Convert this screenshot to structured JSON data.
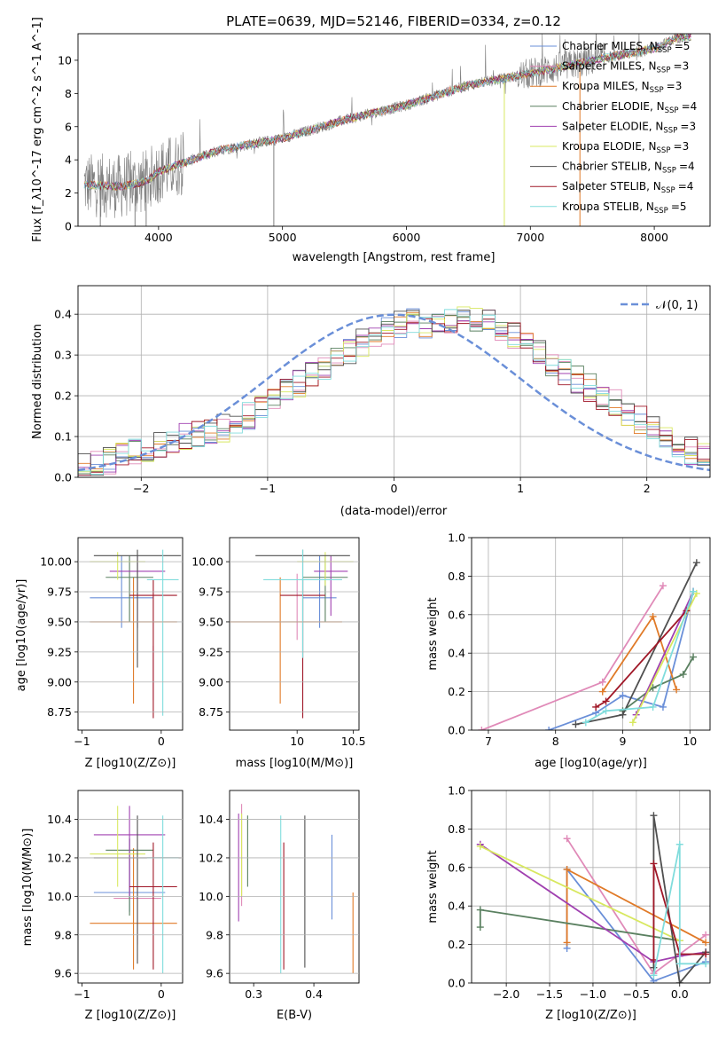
{
  "figure": {
    "title": "PLATE=0639, MJD=52146, FIBERID=0334, z=0.12"
  },
  "model_names": [
    "Chabrier MILES",
    "Salpeter MILES",
    "Kroupa MILES",
    "Chabrier ELODIE",
    "Salpeter ELODIE",
    "Kroupa ELODIE",
    "Chabrier STELIB",
    "Salpeter STELIB",
    "Kroupa STELIB"
  ],
  "model_colors": [
    "#6a8fd8",
    "#e08ab8",
    "#e07a28",
    "#5a8060",
    "#a040b0",
    "#d8e860",
    "#505050",
    "#a01828",
    "#80dcdc"
  ],
  "chart_data": [
    {
      "type": "line",
      "xlabel": "wavelength [Angstrom, rest frame]",
      "ylabel": "Flux [f_λ10^-17 erg cm^-2 s^-1 A^-1]",
      "xlim": [
        3350,
        8450
      ],
      "ylim": [
        0,
        11.6
      ],
      "xticks": [
        4000,
        5000,
        6000,
        7000,
        8000
      ],
      "yticks": [
        0,
        2,
        4,
        6,
        8,
        10
      ],
      "legend_placement": "top-right",
      "data_color": "#808080",
      "continuum_points": [
        [
          3400,
          2.5
        ],
        [
          3700,
          2.4
        ],
        [
          3900,
          2.7
        ],
        [
          4000,
          3.3
        ],
        [
          4500,
          4.6
        ],
        [
          5000,
          5.3
        ],
        [
          5500,
          6.4
        ],
        [
          6000,
          7.3
        ],
        [
          6500,
          8.5
        ],
        [
          7000,
          9.2
        ],
        [
          7500,
          10.0
        ],
        [
          8000,
          10.7
        ],
        [
          8200,
          11.4
        ]
      ],
      "series": [
        {
          "name": "Chabrier MILES",
          "n_ssp": "5"
        },
        {
          "name": "Salpeter MILES",
          "n_ssp": "3"
        },
        {
          "name": "Kroupa MILES",
          "n_ssp": "3"
        },
        {
          "name": "Chabrier ELODIE",
          "n_ssp": "4"
        },
        {
          "name": "Salpeter ELODIE",
          "n_ssp": "3"
        },
        {
          "name": "Kroupa ELODIE",
          "n_ssp": "3"
        },
        {
          "name": "Chabrier STELIB",
          "n_ssp": "4"
        },
        {
          "name": "Salpeter STELIB",
          "n_ssp": "4"
        },
        {
          "name": "Kroupa STELIB",
          "n_ssp": "5"
        }
      ]
    },
    {
      "type": "area",
      "xlabel": "(data-model)/error",
      "ylabel": "Normed distribution",
      "xlim": [
        -2.5,
        2.5
      ],
      "ylim": [
        0,
        0.47
      ],
      "xticks": [
        -2,
        -1,
        0,
        1,
        2
      ],
      "yticks": [
        0.0,
        0.1,
        0.2,
        0.3,
        0.4
      ],
      "grid": true,
      "legend_placement": "top-right",
      "reference_curve": {
        "name": "N(0,1)",
        "color": "#6a8fd8",
        "dash": true
      },
      "bin_width": 0.1,
      "bin_start": -2.5,
      "base_values": [
        0.025,
        0.03,
        0.04,
        0.05,
        0.06,
        0.07,
        0.08,
        0.095,
        0.1,
        0.105,
        0.11,
        0.12,
        0.13,
        0.15,
        0.17,
        0.19,
        0.21,
        0.23,
        0.25,
        0.27,
        0.29,
        0.31,
        0.33,
        0.35,
        0.36,
        0.375,
        0.38,
        0.37,
        0.375,
        0.38,
        0.39,
        0.39,
        0.385,
        0.37,
        0.35,
        0.33,
        0.31,
        0.28,
        0.26,
        0.24,
        0.22,
        0.2,
        0.18,
        0.16,
        0.14,
        0.125,
        0.1,
        0.08,
        0.065,
        0.05
      ]
    },
    {
      "type": "scatter",
      "xlabel": "Z [log10(Z/Z⊙)]",
      "ylabel": "age [log10(age/yr)]",
      "xlim": [
        -1.05,
        0.27
      ],
      "ylim": [
        8.6,
        10.2
      ],
      "xticks": [
        -1,
        0
      ],
      "yticks": [
        8.75,
        9.0,
        9.25,
        9.5,
        9.75,
        10.0
      ],
      "points": [
        {
          "x": -0.5,
          "y": 9.7,
          "xerr": 0.4,
          "y1": 9.45,
          "y2": 10.05
        },
        {
          "x": -0.1,
          "y": 9.0,
          "xerr": 0.0,
          "y1": 8.85,
          "y2": 9.3
        },
        {
          "x": -0.35,
          "y": 9.5,
          "xerr": 0.55,
          "y1": 8.82,
          "y2": 9.87
        },
        {
          "x": -0.4,
          "y": 9.87,
          "xerr": 0.3,
          "y1": 9.5,
          "y2": 10.05
        },
        {
          "x": -0.3,
          "y": 9.92,
          "xerr": 0.35,
          "y1": 9.45,
          "y2": 10.05
        },
        {
          "x": -0.55,
          "y": 10.0,
          "xerr": 0.35,
          "y1": 9.85,
          "y2": 10.08
        },
        {
          "x": -0.3,
          "y": 10.05,
          "xerr": 0.55,
          "y1": 9.12,
          "y2": 10.1
        },
        {
          "x": -0.1,
          "y": 9.72,
          "xerr": 0.3,
          "y1": 8.7,
          "y2": 9.85
        },
        {
          "x": 0.02,
          "y": 9.85,
          "xerr": 0.2,
          "y1": 8.72,
          "y2": 10.1
        }
      ]
    },
    {
      "type": "scatter",
      "xlabel": "mass [log10(M/M⊙)]",
      "ylabel": "",
      "xlim": [
        9.4,
        10.55
      ],
      "ylim": [
        8.6,
        10.2
      ],
      "xticks": [
        10.0,
        10.5
      ],
      "yticks": [
        8.75,
        9.0,
        9.25,
        9.5,
        9.75,
        10.0
      ],
      "points": [
        {
          "x": 10.2,
          "y": 9.7,
          "xerr": 0.15,
          "y1": 9.45,
          "y2": 10.05
        },
        {
          "x": 10.0,
          "y": 9.5,
          "xerr": 0.0,
          "y1": 9.35,
          "y2": 9.9
        },
        {
          "x": 9.85,
          "y": 9.5,
          "xerr": 0.55,
          "y1": 8.82,
          "y2": 9.87
        },
        {
          "x": 10.25,
          "y": 9.87,
          "xerr": 0.2,
          "y1": 9.5,
          "y2": 10.05
        },
        {
          "x": 10.3,
          "y": 9.92,
          "xerr": 0.15,
          "y1": 9.55,
          "y2": 10.05
        },
        {
          "x": 10.25,
          "y": 10.0,
          "xerr": 0.25,
          "y1": 9.8,
          "y2": 10.08
        },
        {
          "x": 10.05,
          "y": 10.05,
          "xerr": 0.42,
          "y1": 9.2,
          "y2": 10.1
        },
        {
          "x": 10.05,
          "y": 9.72,
          "xerr": 0.2,
          "y1": 8.7,
          "y2": 9.85
        },
        {
          "x": 10.05,
          "y": 9.85,
          "xerr": 0.35,
          "y1": 9.2,
          "y2": 10.1
        }
      ]
    },
    {
      "type": "line",
      "xlabel": "age [log10(age/yr)]",
      "ylabel": "mass weight",
      "xlim": [
        6.75,
        10.3
      ],
      "ylim": [
        0,
        1.0
      ],
      "xticks": [
        7,
        8,
        9,
        10
      ],
      "yticks": [
        0.0,
        0.2,
        0.4,
        0.6,
        0.8,
        1.0
      ],
      "grid": true,
      "series": [
        {
          "name": "Chabrier MILES",
          "x": [
            7.9,
            8.6,
            9.0,
            9.6,
            10.05
          ],
          "y": [
            0.0,
            0.09,
            0.18,
            0.12,
            0.72
          ]
        },
        {
          "name": "Salpeter MILES",
          "x": [
            6.9,
            8.7,
            9.6
          ],
          "y": [
            0.0,
            0.25,
            0.75
          ]
        },
        {
          "name": "Kroupa MILES",
          "x": [
            8.7,
            9.45,
            9.8
          ],
          "y": [
            0.2,
            0.59,
            0.21
          ]
        },
        {
          "name": "Chabrier ELODIE",
          "x": [
            9.0,
            9.45,
            9.9,
            10.05
          ],
          "y": [
            0.1,
            0.22,
            0.29,
            0.38
          ]
        },
        {
          "name": "Salpeter ELODIE",
          "x": [
            9.2,
            10.05
          ],
          "y": [
            0.08,
            0.72
          ]
        },
        {
          "name": "Kroupa ELODIE",
          "x": [
            9.15,
            10.1
          ],
          "y": [
            0.04,
            0.71
          ]
        },
        {
          "name": "Chabrier STELIB",
          "x": [
            8.3,
            9.0,
            10.1
          ],
          "y": [
            0.03,
            0.08,
            0.87
          ]
        },
        {
          "name": "Salpeter STELIB",
          "x": [
            8.6,
            8.75,
            9.95
          ],
          "y": [
            0.12,
            0.15,
            0.62
          ]
        },
        {
          "name": "Kroupa STELIB",
          "x": [
            8.45,
            8.75,
            9.45,
            10.05
          ],
          "y": [
            0.04,
            0.1,
            0.12,
            0.72
          ]
        }
      ]
    },
    {
      "type": "scatter",
      "xlabel": "Z [log10(Z/Z⊙)]",
      "ylabel": "mass [log10(M/M⊙)]",
      "xlim": [
        -1.05,
        0.27
      ],
      "ylim": [
        9.55,
        10.55
      ],
      "xticks": [
        -1,
        0
      ],
      "yticks": [
        9.6,
        9.8,
        10.0,
        10.2,
        10.4
      ],
      "points": [
        {
          "x": -0.4,
          "y": 10.02,
          "xerr": 0.45,
          "y1": 9.92,
          "y2": 10.3
        },
        {
          "x": -0.3,
          "y": 9.99,
          "xerr": 0.3,
          "y1": 9.75,
          "y2": 10.05
        },
        {
          "x": -0.35,
          "y": 9.86,
          "xerr": 0.55,
          "y1": 9.62,
          "y2": 10.25
        },
        {
          "x": -0.4,
          "y": 10.24,
          "xerr": 0.3,
          "y1": 9.9,
          "y2": 10.3
        },
        {
          "x": -0.4,
          "y": 10.32,
          "xerr": 0.45,
          "y1": 10.0,
          "y2": 10.47
        },
        {
          "x": -0.55,
          "y": 10.22,
          "xerr": 0.35,
          "y1": 10.05,
          "y2": 10.47
        },
        {
          "x": -0.3,
          "y": 10.2,
          "xerr": 0.55,
          "y1": 9.65,
          "y2": 10.42
        },
        {
          "x": -0.1,
          "y": 10.05,
          "xerr": 0.3,
          "y1": 9.62,
          "y2": 10.28
        },
        {
          "x": 0.02,
          "y": 10.2,
          "xerr": 0.2,
          "y1": 9.6,
          "y2": 10.42
        }
      ]
    },
    {
      "type": "scatter",
      "xlabel": "E(B-V)",
      "ylabel": "",
      "xlim": [
        0.26,
        0.475
      ],
      "ylim": [
        9.55,
        10.55
      ],
      "xticks": [
        0.3,
        0.4
      ],
      "yticks": [
        9.6,
        9.8,
        10.0,
        10.2,
        10.4
      ],
      "points": [
        {
          "x": 0.43,
          "y1": 9.88,
          "y2": 10.32
        },
        {
          "x": 0.28,
          "y1": 9.95,
          "y2": 10.48
        },
        {
          "x": 0.465,
          "y1": 9.6,
          "y2": 10.02
        },
        {
          "x": 0.29,
          "y1": 10.05,
          "y2": 10.42
        },
        {
          "x": 0.275,
          "y1": 9.87,
          "y2": 10.43
        },
        {
          "x": 0.28,
          "y1": 10.0,
          "y2": 10.43
        },
        {
          "x": 0.385,
          "y1": 9.63,
          "y2": 10.42
        },
        {
          "x": 0.35,
          "y1": 9.62,
          "y2": 10.28
        },
        {
          "x": 0.345,
          "y1": 9.6,
          "y2": 10.42
        }
      ]
    },
    {
      "type": "line",
      "xlabel": "Z [log10(Z/Z⊙)]",
      "ylabel": "mass weight",
      "xlim": [
        -2.4,
        0.35
      ],
      "ylim": [
        0,
        1.0
      ],
      "xticks": [
        -2.0,
        -1.5,
        -1.0,
        -0.5,
        0.0
      ],
      "yticks": [
        0.0,
        0.2,
        0.4,
        0.6,
        0.8,
        1.0
      ],
      "grid": true,
      "series": [
        {
          "name": "Chabrier MILES",
          "x": [
            -1.3,
            -1.3,
            -0.3,
            0.3
          ],
          "y": [
            0.18,
            0.59,
            0.01,
            0.11
          ]
        },
        {
          "name": "Salpeter MILES",
          "x": [
            -1.3,
            -0.3,
            0.3
          ],
          "y": [
            0.75,
            0.05,
            0.25
          ]
        },
        {
          "name": "Kroupa MILES",
          "x": [
            -1.3,
            -1.3,
            0.3
          ],
          "y": [
            0.21,
            0.59,
            0.21
          ]
        },
        {
          "name": "Chabrier ELODIE",
          "x": [
            -2.3,
            -2.3,
            0.0
          ],
          "y": [
            0.29,
            0.38,
            0.22
          ]
        },
        {
          "name": "Salpeter ELODIE",
          "x": [
            -2.3,
            -0.3,
            0.0,
            0.3
          ],
          "y": [
            0.72,
            0.11,
            0.14,
            0.16
          ]
        },
        {
          "name": "Kroupa ELODIE",
          "x": [
            -2.3,
            0.0
          ],
          "y": [
            0.71,
            0.22
          ]
        },
        {
          "name": "Chabrier STELIB",
          "x": [
            -0.3,
            -0.3,
            0.0,
            0.3
          ],
          "y": [
            0.08,
            0.87,
            0.0,
            0.16
          ]
        },
        {
          "name": "Salpeter STELIB",
          "x": [
            -0.3,
            -0.3,
            0.0,
            0.3
          ],
          "y": [
            0.12,
            0.62,
            0.15,
            0.15
          ]
        },
        {
          "name": "Kroupa STELIB",
          "x": [
            -0.3,
            0.0,
            0.0,
            0.3
          ],
          "y": [
            0.04,
            0.72,
            0.1,
            0.1
          ]
        }
      ]
    }
  ]
}
